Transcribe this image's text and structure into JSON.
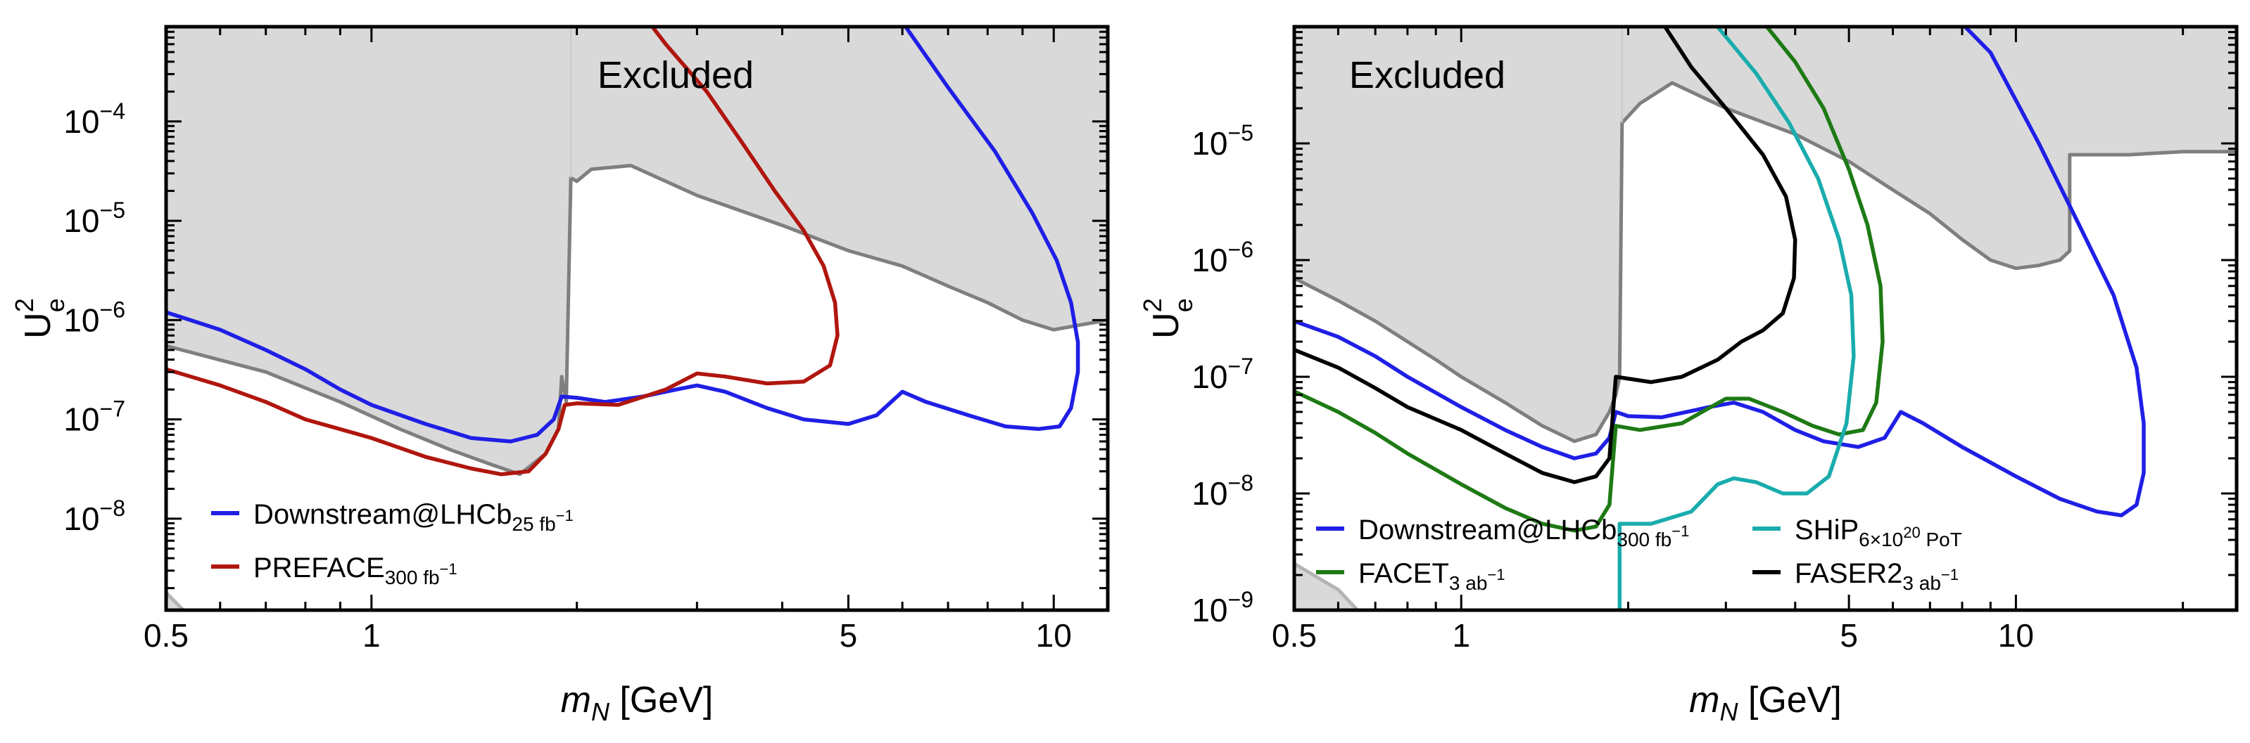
{
  "colors": {
    "excluded_fill": "#d9d9d9",
    "excluded_edge": "#7f7f7f",
    "downstream": "#1f1fe6",
    "preface": "#b0160e",
    "ship": "#1aacad",
    "facet": "#1e7a14",
    "faser2": "#000000",
    "axes": "#000000"
  },
  "chart_data": [
    {
      "type": "line",
      "panel": "left",
      "region_label": "Excluded",
      "xlabel_var": "m",
      "xlabel_sub": "N",
      "xlabel_unit": "[GeV]",
      "ylabel_base": "U",
      "ylabel_sup": "2",
      "ylabel_sub": "e",
      "xscale": "log",
      "yscale": "log",
      "xlim": [
        0.5,
        12.0
      ],
      "ylim": [
        1.2e-09,
        0.0009
      ],
      "xticks": [
        {
          "v": 0.5,
          "label": "0.5"
        },
        {
          "v": 1,
          "label": "1"
        },
        {
          "v": 5,
          "label": "5"
        },
        {
          "v": 10,
          "label": "10"
        }
      ],
      "yticks": [
        {
          "v": 1e-08,
          "mant": "10",
          "exp": "−8"
        },
        {
          "v": 1e-07,
          "mant": "10",
          "exp": "−7"
        },
        {
          "v": 1e-06,
          "mant": "10",
          "exp": "−6"
        },
        {
          "v": 1e-05,
          "mant": "10",
          "exp": "−5"
        },
        {
          "v": 0.0001,
          "mant": "10",
          "exp": "−4"
        }
      ],
      "excluded_boundary": [
        [
          0.5,
          5.5e-07
        ],
        [
          0.7,
          3e-07
        ],
        [
          0.9,
          1.5e-07
        ],
        [
          1.1,
          8e-08
        ],
        [
          1.3,
          5e-08
        ],
        [
          1.5,
          3.5e-08
        ],
        [
          1.65,
          2.8e-08
        ],
        [
          1.8,
          4.5e-08
        ],
        [
          1.88,
          8e-08
        ],
        [
          1.9,
          2.7e-07
        ],
        [
          1.93,
          1.5e-07
        ],
        [
          1.96,
          2.7e-05
        ],
        [
          2.0,
          2.5e-05
        ],
        [
          2.1,
          3.3e-05
        ],
        [
          2.4,
          3.6e-05
        ],
        [
          3.0,
          1.8e-05
        ],
        [
          4.0,
          9e-06
        ],
        [
          5.0,
          5e-06
        ],
        [
          6.0,
          3.5e-06
        ],
        [
          7.0,
          2.2e-06
        ],
        [
          8.0,
          1.5e-06
        ],
        [
          9.0,
          1e-06
        ],
        [
          10.0,
          8e-07
        ],
        [
          11.0,
          9e-07
        ],
        [
          12.0,
          1e-06
        ]
      ],
      "extra_gray": [
        [
          0.5,
          1.8e-09
        ],
        [
          0.53,
          1.2e-09
        ]
      ],
      "series": [
        {
          "name": "Downstream@LHCb",
          "sub": "25 fb",
          "sup": "−1",
          "color_key": "downstream",
          "points": [
            [
              0.5,
              1.2e-06
            ],
            [
              0.6,
              8e-07
            ],
            [
              0.7,
              5e-07
            ],
            [
              0.8,
              3.2e-07
            ],
            [
              0.9,
              2e-07
            ],
            [
              1.0,
              1.4e-07
            ],
            [
              1.2,
              9e-08
            ],
            [
              1.4,
              6.5e-08
            ],
            [
              1.6,
              6e-08
            ],
            [
              1.75,
              7e-08
            ],
            [
              1.85,
              1e-07
            ],
            [
              1.9,
              1.7e-07
            ],
            [
              2.0,
              1.65e-07
            ],
            [
              2.2,
              1.5e-07
            ],
            [
              2.5,
              1.7e-07
            ],
            [
              2.8,
              2e-07
            ],
            [
              3.0,
              2.2e-07
            ],
            [
              3.3,
              1.9e-07
            ],
            [
              3.8,
              1.3e-07
            ],
            [
              4.3,
              1e-07
            ],
            [
              5.0,
              9e-08
            ],
            [
              5.5,
              1.1e-07
            ],
            [
              6.0,
              1.9e-07
            ],
            [
              6.5,
              1.5e-07
            ],
            [
              7.5,
              1.1e-07
            ],
            [
              8.5,
              8.5e-08
            ],
            [
              9.5,
              8e-08
            ],
            [
              10.2,
              8.5e-08
            ],
            [
              10.6,
              1.3e-07
            ],
            [
              10.85,
              3e-07
            ],
            [
              10.85,
              6e-07
            ],
            [
              10.6,
              1.5e-06
            ],
            [
              10.1,
              4e-06
            ],
            [
              9.3,
              1.2e-05
            ],
            [
              8.2,
              5e-05
            ],
            [
              7.0,
              0.00022
            ],
            [
              6.0,
              0.001
            ]
          ]
        },
        {
          "name": "PREFACE",
          "sub": "300 fb",
          "sup": "−1",
          "color_key": "preface",
          "points": [
            [
              0.5,
              3.2e-07
            ],
            [
              0.6,
              2.2e-07
            ],
            [
              0.7,
              1.5e-07
            ],
            [
              0.8,
              1e-07
            ],
            [
              1.0,
              6.5e-08
            ],
            [
              1.2,
              4.2e-08
            ],
            [
              1.4,
              3.2e-08
            ],
            [
              1.55,
              2.8e-08
            ],
            [
              1.7,
              3e-08
            ],
            [
              1.8,
              4.5e-08
            ],
            [
              1.88,
              8e-08
            ],
            [
              1.92,
              1.4e-07
            ],
            [
              2.0,
              1.45e-07
            ],
            [
              2.3,
              1.4e-07
            ],
            [
              2.7,
              2e-07
            ],
            [
              3.0,
              2.9e-07
            ],
            [
              3.3,
              2.7e-07
            ],
            [
              3.8,
              2.3e-07
            ],
            [
              4.3,
              2.4e-07
            ],
            [
              4.7,
              3.5e-07
            ],
            [
              4.82,
              7e-07
            ],
            [
              4.78,
              1.5e-06
            ],
            [
              4.6,
              3.5e-06
            ],
            [
              4.3,
              8e-06
            ],
            [
              3.9,
              2e-05
            ],
            [
              3.5,
              6e-05
            ],
            [
              3.1,
              0.0002
            ],
            [
              2.7,
              0.0006
            ],
            [
              2.55,
              0.001
            ]
          ]
        }
      ]
    },
    {
      "type": "line",
      "panel": "right",
      "region_label": "Excluded",
      "xlabel_var": "m",
      "xlabel_sub": "N",
      "xlabel_unit": "[GeV]",
      "ylabel_base": "U",
      "ylabel_sup": "2",
      "ylabel_sub": "e",
      "xscale": "log",
      "yscale": "log",
      "xlim": [
        0.5,
        25.0
      ],
      "ylim": [
        1e-09,
        0.0001
      ],
      "xticks": [
        {
          "v": 0.5,
          "label": "0.5"
        },
        {
          "v": 1,
          "label": "1"
        },
        {
          "v": 5,
          "label": "5"
        },
        {
          "v": 10,
          "label": "10"
        }
      ],
      "yticks": [
        {
          "v": 1e-09,
          "mant": "10",
          "exp": "−9"
        },
        {
          "v": 1e-08,
          "mant": "10",
          "exp": "−8"
        },
        {
          "v": 1e-07,
          "mant": "10",
          "exp": "−7"
        },
        {
          "v": 1e-06,
          "mant": "10",
          "exp": "−6"
        },
        {
          "v": 1e-05,
          "mant": "10",
          "exp": "−5"
        }
      ],
      "excluded_boundary": [
        [
          0.5,
          7e-07
        ],
        [
          0.6,
          4.5e-07
        ],
        [
          0.7,
          3e-07
        ],
        [
          0.8,
          2e-07
        ],
        [
          0.9,
          1.4e-07
        ],
        [
          1.0,
          1e-07
        ],
        [
          1.2,
          6e-08
        ],
        [
          1.4,
          3.8e-08
        ],
        [
          1.6,
          2.8e-08
        ],
        [
          1.75,
          3.2e-08
        ],
        [
          1.85,
          5e-08
        ],
        [
          1.9,
          7e-08
        ],
        [
          1.93,
          1e-07
        ],
        [
          1.95,
          1.5e-05
        ],
        [
          2.1,
          2.2e-05
        ],
        [
          2.4,
          3.3e-05
        ],
        [
          3.0,
          2e-05
        ],
        [
          4.0,
          1.2e-05
        ],
        [
          5.0,
          7e-06
        ],
        [
          6.0,
          4e-06
        ],
        [
          7.0,
          2.5e-06
        ],
        [
          8.0,
          1.5e-06
        ],
        [
          9.0,
          1e-06
        ],
        [
          10.0,
          8.5e-07
        ],
        [
          11.0,
          9e-07
        ],
        [
          12.0,
          1e-06
        ],
        [
          12.5,
          1.2e-06
        ],
        [
          12.5,
          8e-06
        ],
        [
          16.0,
          8e-06
        ],
        [
          20.0,
          8.5e-06
        ],
        [
          25.0,
          8.5e-06
        ]
      ],
      "extra_gray": [
        [
          0.5,
          2.5e-09
        ],
        [
          0.6,
          1.5e-09
        ],
        [
          0.65,
          1e-09
        ]
      ],
      "series": [
        {
          "name": "Downstream@LHCb",
          "sub": "300 fb",
          "sup": "−1",
          "color_key": "downstream",
          "points": [
            [
              0.5,
              3e-07
            ],
            [
              0.6,
              2.2e-07
            ],
            [
              0.7,
              1.5e-07
            ],
            [
              0.8,
              1e-07
            ],
            [
              1.0,
              5.5e-08
            ],
            [
              1.2,
              3.5e-08
            ],
            [
              1.4,
              2.5e-08
            ],
            [
              1.6,
              2e-08
            ],
            [
              1.75,
              2.2e-08
            ],
            [
              1.85,
              3e-08
            ],
            [
              1.9,
              5e-08
            ],
            [
              2.0,
              4.6e-08
            ],
            [
              2.3,
              4.5e-08
            ],
            [
              2.8,
              5.5e-08
            ],
            [
              3.1,
              6e-08
            ],
            [
              3.5,
              5e-08
            ],
            [
              4.0,
              3.5e-08
            ],
            [
              4.5,
              2.8e-08
            ],
            [
              5.2,
              2.5e-08
            ],
            [
              5.8,
              3e-08
            ],
            [
              6.2,
              5e-08
            ],
            [
              6.8,
              4e-08
            ],
            [
              8.0,
              2.5e-08
            ],
            [
              10.0,
              1.4e-08
            ],
            [
              12.0,
              9e-09
            ],
            [
              14.0,
              7e-09
            ],
            [
              15.5,
              6.5e-09
            ],
            [
              16.5,
              8e-09
            ],
            [
              17.0,
              1.5e-08
            ],
            [
              17.0,
              4e-08
            ],
            [
              16.5,
              1.2e-07
            ],
            [
              15.0,
              5e-07
            ],
            [
              13.0,
              2e-06
            ],
            [
              11.0,
              1e-05
            ],
            [
              9.0,
              6e-05
            ],
            [
              7.8,
              0.00012
            ]
          ]
        },
        {
          "name": "FACET",
          "sub": "3 ab",
          "sup": "−1",
          "color_key": "facet",
          "points": [
            [
              0.5,
              7.5e-08
            ],
            [
              0.6,
              5e-08
            ],
            [
              0.7,
              3.3e-08
            ],
            [
              0.8,
              2.2e-08
            ],
            [
              1.0,
              1.2e-08
            ],
            [
              1.2,
              7.5e-09
            ],
            [
              1.4,
              5.5e-09
            ],
            [
              1.6,
              4.8e-09
            ],
            [
              1.75,
              5.2e-09
            ],
            [
              1.85,
              8e-09
            ],
            [
              1.9,
              3.8e-08
            ],
            [
              2.1,
              3.5e-08
            ],
            [
              2.5,
              4e-08
            ],
            [
              3.0,
              6.5e-08
            ],
            [
              3.3,
              6.5e-08
            ],
            [
              3.8,
              5e-08
            ],
            [
              4.3,
              3.8e-08
            ],
            [
              4.8,
              3.2e-08
            ],
            [
              5.3,
              3.5e-08
            ],
            [
              5.6,
              6e-08
            ],
            [
              5.75,
              2e-07
            ],
            [
              5.7,
              6e-07
            ],
            [
              5.4,
              2e-06
            ],
            [
              5.0,
              6e-06
            ],
            [
              4.5,
              2e-05
            ],
            [
              4.0,
              5e-05
            ],
            [
              3.5,
              0.00011
            ]
          ]
        },
        {
          "name": "SHiP",
          "sub": "6×10",
          "sub_sup": "20",
          "sub_tail": " PoT",
          "color_key": "ship",
          "points": [
            [
              1.93,
              1e-09
            ],
            [
              1.93,
              5.5e-09
            ],
            [
              2.2,
              5.5e-09
            ],
            [
              2.6,
              7e-09
            ],
            [
              2.9,
              1.2e-08
            ],
            [
              3.1,
              1.35e-08
            ],
            [
              3.4,
              1.25e-08
            ],
            [
              3.8,
              1e-08
            ],
            [
              4.2,
              1e-08
            ],
            [
              4.6,
              1.4e-08
            ],
            [
              4.95,
              4e-08
            ],
            [
              5.1,
              1.5e-07
            ],
            [
              5.05,
              5e-07
            ],
            [
              4.8,
              1.5e-06
            ],
            [
              4.4,
              5e-06
            ],
            [
              3.9,
              1.5e-05
            ],
            [
              3.4,
              4e-05
            ],
            [
              2.85,
              0.00011
            ]
          ]
        },
        {
          "name": "FASER2",
          "sub": "3 ab",
          "sup": "−1",
          "color_key": "faser2",
          "points": [
            [
              0.5,
              1.7e-07
            ],
            [
              0.6,
              1.2e-07
            ],
            [
              0.7,
              8e-08
            ],
            [
              0.8,
              5.5e-08
            ],
            [
              1.0,
              3.5e-08
            ],
            [
              1.2,
              2.2e-08
            ],
            [
              1.4,
              1.5e-08
            ],
            [
              1.6,
              1.25e-08
            ],
            [
              1.75,
              1.4e-08
            ],
            [
              1.85,
              2e-08
            ],
            [
              1.9,
              1e-07
            ],
            [
              2.2,
              9e-08
            ],
            [
              2.5,
              1e-07
            ],
            [
              2.9,
              1.4e-07
            ],
            [
              3.2,
              2e-07
            ],
            [
              3.5,
              2.5e-07
            ],
            [
              3.8,
              3.5e-07
            ],
            [
              3.98,
              7e-07
            ],
            [
              4.0,
              1.5e-06
            ],
            [
              3.85,
              3.5e-06
            ],
            [
              3.5,
              8e-06
            ],
            [
              3.0,
              2e-05
            ],
            [
              2.6,
              4.5e-05
            ],
            [
              2.3,
              0.00011
            ]
          ]
        }
      ]
    }
  ],
  "legends": {
    "left": [
      {
        "series": 0
      },
      {
        "series": 1
      }
    ],
    "right": [
      {
        "series": 0
      },
      {
        "series": 2
      },
      {
        "series": 1
      },
      {
        "series": 3
      }
    ]
  }
}
